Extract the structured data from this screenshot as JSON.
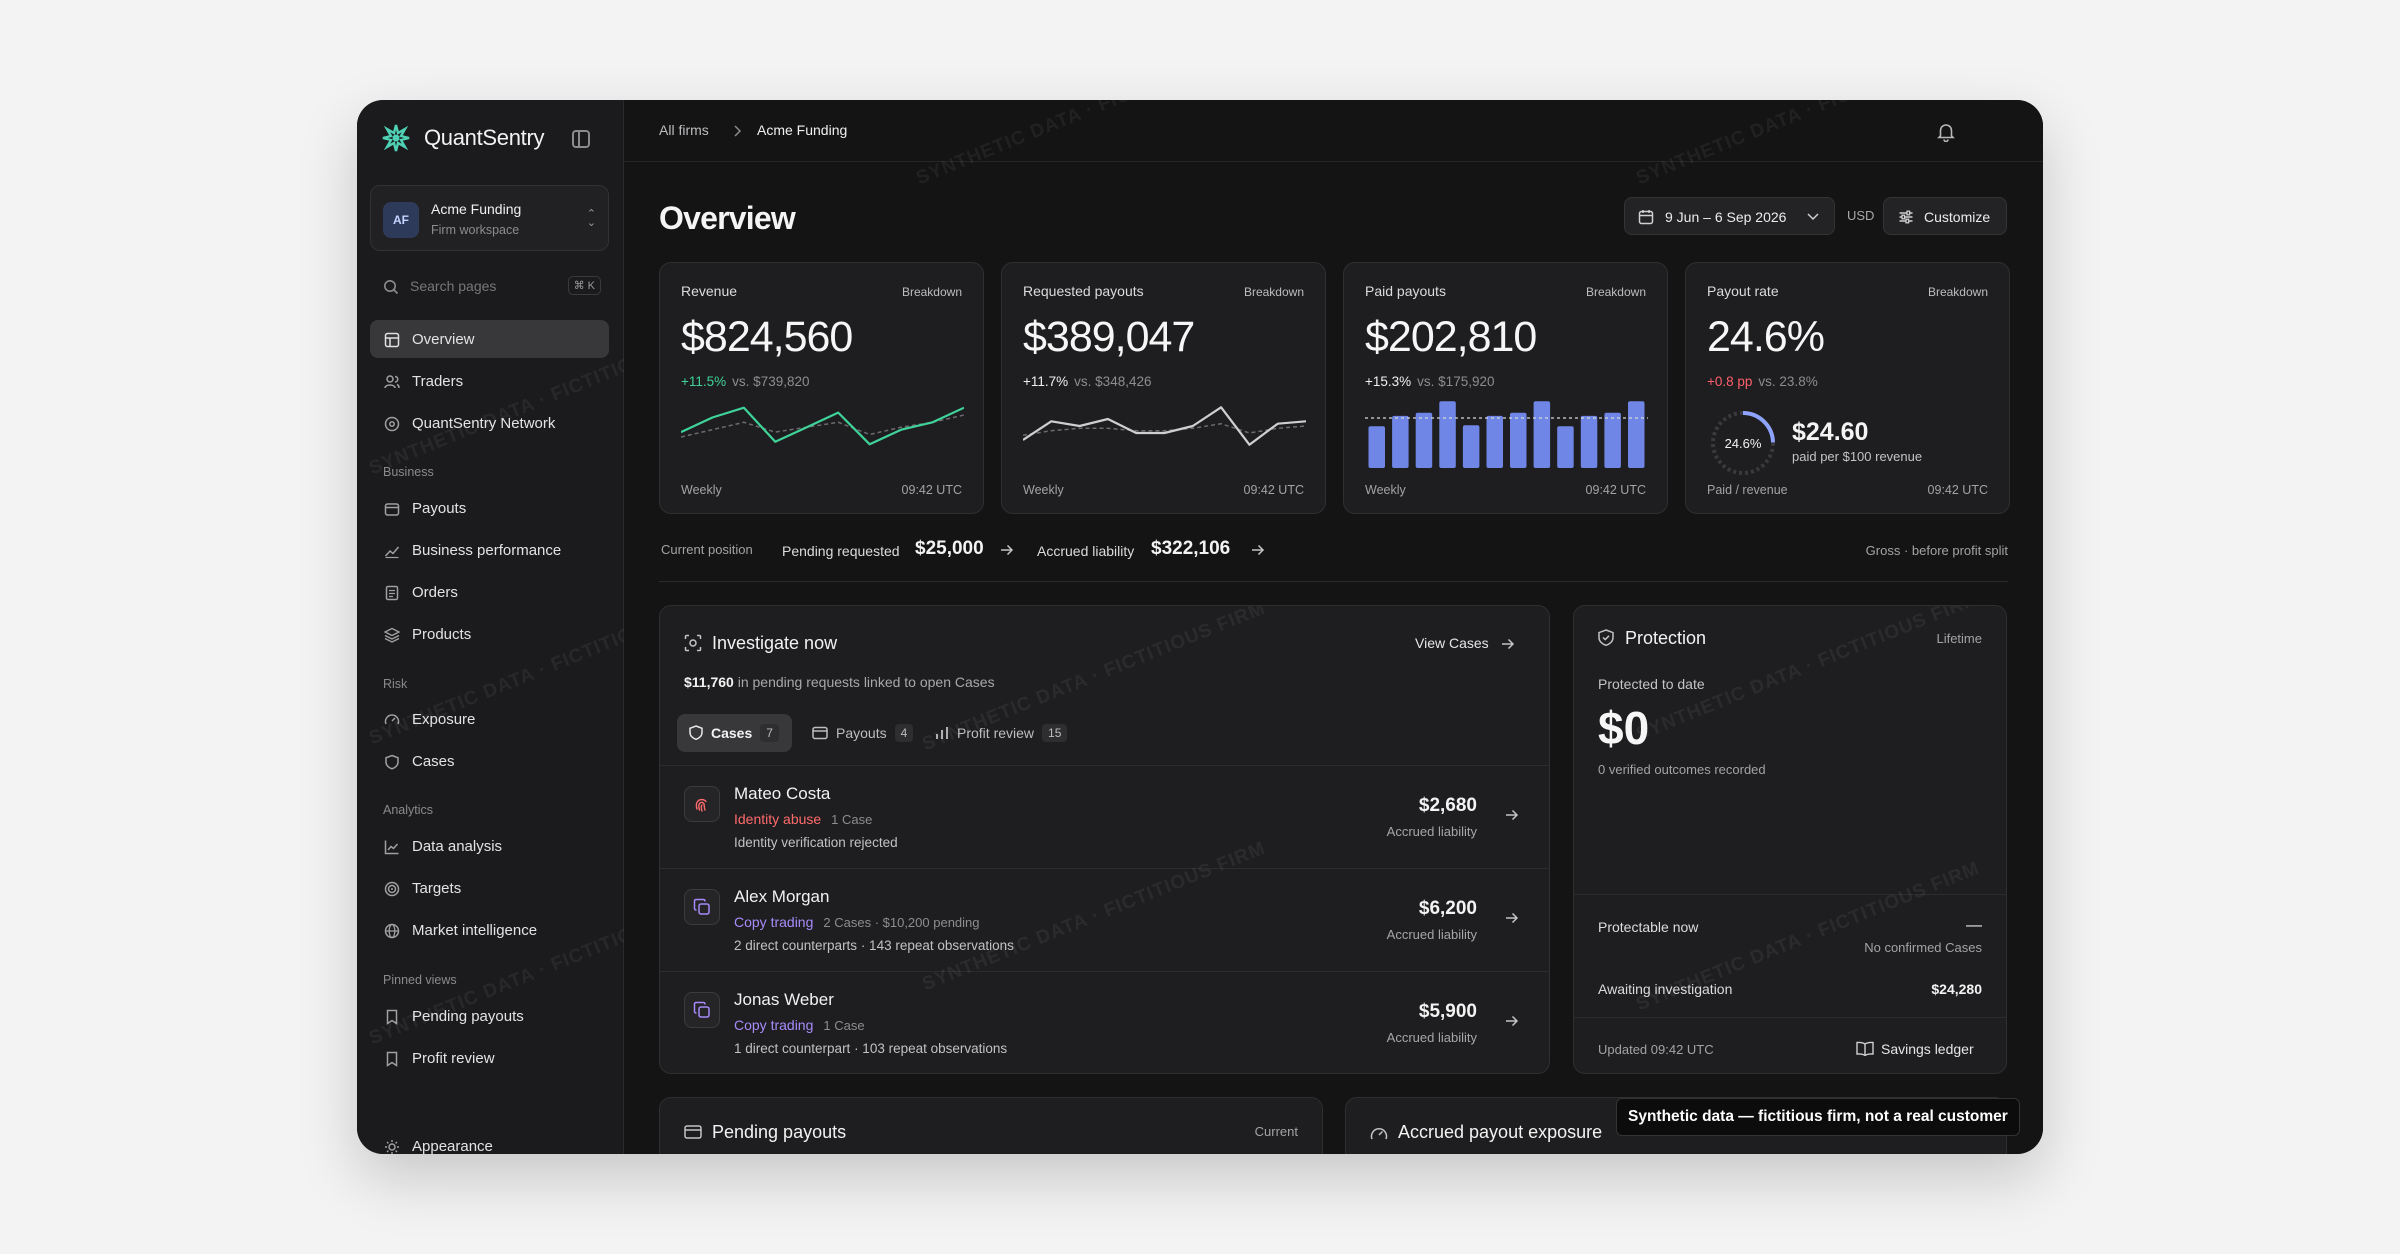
{
  "brand": {
    "name": "QuantSentry"
  },
  "workspace": {
    "initials": "AF",
    "name": "Acme Funding",
    "subtitle": "Firm workspace"
  },
  "search": {
    "placeholder": "Search pages",
    "shortcut": "⌘ K"
  },
  "nav": {
    "primary": [
      {
        "label": "Overview",
        "icon": "layout-icon",
        "active": true
      },
      {
        "label": "Traders",
        "icon": "users-icon"
      },
      {
        "label": "QuantSentry Network",
        "icon": "network-icon"
      }
    ],
    "sections": [
      {
        "title": "Business",
        "items": [
          {
            "label": "Payouts",
            "icon": "wallet-icon"
          },
          {
            "label": "Business performance",
            "icon": "trend-icon"
          },
          {
            "label": "Orders",
            "icon": "receipt-icon"
          },
          {
            "label": "Products",
            "icon": "layers-icon"
          }
        ]
      },
      {
        "title": "Risk",
        "items": [
          {
            "label": "Exposure",
            "icon": "gauge-icon"
          },
          {
            "label": "Cases",
            "icon": "shield-icon"
          }
        ]
      },
      {
        "title": "Analytics",
        "items": [
          {
            "label": "Data analysis",
            "icon": "chart-line-icon"
          },
          {
            "label": "Targets",
            "icon": "target-icon"
          },
          {
            "label": "Market intelligence",
            "icon": "globe-icon"
          }
        ]
      },
      {
        "title": "Pinned views",
        "items": [
          {
            "label": "Pending payouts",
            "icon": "bookmark-icon"
          },
          {
            "label": "Profit review",
            "icon": "bookmark-icon"
          }
        ]
      }
    ],
    "footer": {
      "label": "Appearance",
      "icon": "sun-icon"
    }
  },
  "breadcrumb": {
    "root": "All firms",
    "current": "Acme Funding"
  },
  "page": {
    "title": "Overview"
  },
  "toolbar": {
    "date_range": "9 Jun – 6 Sep 2026",
    "currency": "USD",
    "customize": "Customize"
  },
  "cards": [
    {
      "title": "Revenue",
      "action": "Breakdown",
      "value": "$824,560",
      "delta": "+11.5%",
      "delta_color": "#3fd39a",
      "vs": "vs. $739,820",
      "footer_left": "Weekly",
      "footer_right": "09:42 UTC",
      "chart": {
        "type": "line",
        "color": "#3fd39a",
        "values": [
          42,
          48,
          52,
          38,
          44,
          50,
          37,
          43,
          46,
          52
        ],
        "compare": [
          40,
          43,
          46,
          42,
          44,
          46,
          41,
          44,
          46,
          49
        ]
      }
    },
    {
      "title": "Requested payouts",
      "action": "Breakdown",
      "value": "$389,047",
      "delta": "+11.7%",
      "delta_color": "#f0f0f0",
      "vs": "vs. $348,426",
      "footer_left": "Weekly",
      "footer_right": "09:42 UTC",
      "chart": {
        "type": "line",
        "color": "#cfcfcf",
        "values": [
          38,
          46,
          44,
          47,
          41,
          41,
          44,
          52,
          36,
          45,
          46
        ],
        "compare": [
          40,
          42,
          43,
          43,
          42,
          42,
          43,
          45,
          41,
          43,
          44
        ]
      }
    },
    {
      "title": "Paid payouts",
      "action": "Breakdown",
      "value": "$202,810",
      "delta": "+15.3%",
      "delta_color": "#f0f0f0",
      "vs": "vs. $175,920",
      "footer_left": "Weekly",
      "footer_right": "09:42 UTC",
      "chart": {
        "type": "bar",
        "color": "#6f86e6",
        "values": [
          40,
          50,
          53,
          64,
          41,
          50,
          53,
          64,
          40,
          50,
          53,
          64
        ],
        "avg": 48
      }
    },
    {
      "title": "Payout rate",
      "action": "Breakdown",
      "value": "24.6%",
      "delta": "+0.8 pp",
      "delta_color": "#ff5f6b",
      "vs": "vs. 23.8%",
      "footer_left": "Paid / revenue",
      "footer_right": "09:42 UTC",
      "gauge": {
        "fraction": 0.246,
        "label": "24.6%",
        "amount": "$24.60",
        "caption": "paid per $100 revenue",
        "color": "#8ea2ff"
      }
    }
  ],
  "position": {
    "label": "Current position",
    "pending_label": "Pending requested",
    "pending_value": "$25,000",
    "accrued_label": "Accrued liability",
    "accrued_value": "$322,106",
    "note": "Gross · before profit split"
  },
  "investigate": {
    "title": "Investigate now",
    "view_cases": "View Cases",
    "summary_amount": "$11,760",
    "summary_text": "in pending requests linked to open Cases",
    "tabs": [
      {
        "label": "Cases",
        "count": "7",
        "icon": "shield-icon"
      },
      {
        "label": "Payouts",
        "count": "4",
        "icon": "wallet-icon"
      },
      {
        "label": "Profit review",
        "count": "15",
        "icon": "bar-chart-icon"
      }
    ],
    "rows": [
      {
        "name": "Mateo Costa",
        "tag": "Identity abuse",
        "tag_color": "#ff6b6b",
        "meta": "1 Case",
        "detail": "Identity verification rejected",
        "amount": "$2,680",
        "amount_label": "Accrued liability",
        "icon": "fingerprint-icon"
      },
      {
        "name": "Alex Morgan",
        "tag": "Copy trading",
        "tag_color": "#a78bfa",
        "meta": "2 Cases · $10,200 pending",
        "detail": "2 direct counterparts · 143 repeat observations",
        "amount": "$6,200",
        "amount_label": "Accrued liability",
        "icon": "copy-icon"
      },
      {
        "name": "Jonas Weber",
        "tag": "Copy trading",
        "tag_color": "#a78bfa",
        "meta": "1 Case",
        "detail": "1 direct counterpart · 103 repeat observations",
        "amount": "$5,900",
        "amount_label": "Accrued liability",
        "icon": "copy-icon"
      }
    ]
  },
  "protection": {
    "title": "Protection",
    "period": "Lifetime",
    "protected_label": "Protected to date",
    "protected_value": "$0",
    "outcomes": "0 verified outcomes recorded",
    "protectable_label": "Protectable now",
    "protectable_value": "—",
    "protectable_note": "No confirmed Cases",
    "awaiting_label": "Awaiting investigation",
    "awaiting_value": "$24,280",
    "updated": "Updated 09:42 UTC",
    "ledger": "Savings ledger"
  },
  "bottom": {
    "pending_title": "Pending payouts",
    "pending_badge": "Current",
    "exposure_title": "Accrued payout exposure"
  },
  "watermark": "SYNTHETIC DATA · FICTITIOUS FIRM",
  "toast": "Synthetic data — fictitious firm, not a real customer"
}
